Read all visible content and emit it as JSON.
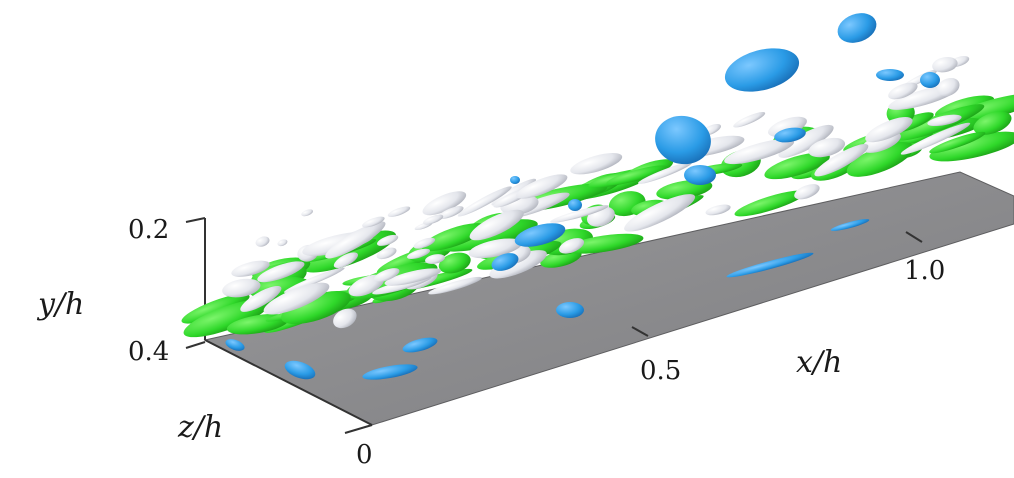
{
  "figure": {
    "colors": {
      "floor": "#8a8a8c",
      "floor_edge": "#5e5e60",
      "positive_structure": "#2fd82a",
      "negative_structure": "#2a9be6",
      "grey_structure": "#e4e6ec",
      "axis_line": "#333333"
    },
    "axes": {
      "x_label": "x/h",
      "y_label": "y/h",
      "z_label": "z/h",
      "x_ticks": [
        "0.5",
        "1.0"
      ],
      "y_ticks": [
        "0.2",
        "0.4"
      ],
      "z_ticks": [
        "0"
      ]
    }
  }
}
